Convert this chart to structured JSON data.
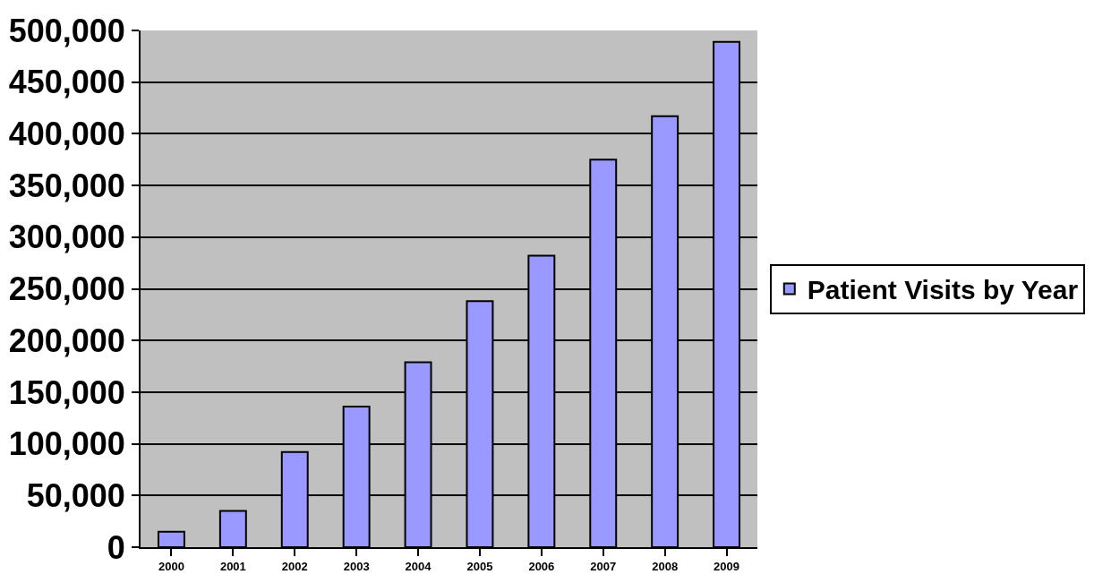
{
  "chart_data": {
    "type": "bar",
    "categories": [
      "2000",
      "2001",
      "2002",
      "2003",
      "2004",
      "2005",
      "2006",
      "2007",
      "2008",
      "2009"
    ],
    "series": [
      {
        "name": "Patient Visits by Year",
        "color": "#9999ff",
        "values": [
          15000,
          35000,
          92000,
          136000,
          179000,
          238000,
          282000,
          375000,
          417000,
          489000
        ]
      }
    ],
    "ylim": [
      0,
      500000
    ],
    "yticks": [
      {
        "value": 0,
        "label": "0"
      },
      {
        "value": 50000,
        "label": "50,000"
      },
      {
        "value": 100000,
        "label": "100,000"
      },
      {
        "value": 150000,
        "label": "150,000"
      },
      {
        "value": 200000,
        "label": "200,000"
      },
      {
        "value": 250000,
        "label": "250,000"
      },
      {
        "value": 300000,
        "label": "300,000"
      },
      {
        "value": 350000,
        "label": "350,000"
      },
      {
        "value": 400000,
        "label": "400,000"
      },
      {
        "value": 450000,
        "label": "450,000"
      },
      {
        "value": 500000,
        "label": "500,000"
      }
    ],
    "grid": "y",
    "legend": "right"
  }
}
